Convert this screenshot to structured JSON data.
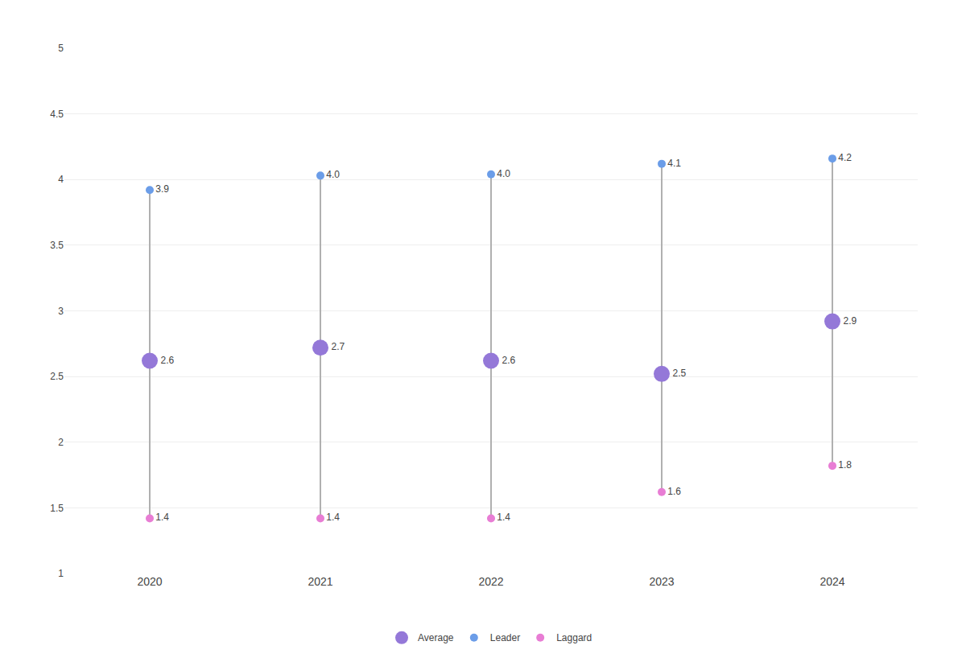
{
  "chart_data": {
    "type": "dumbbell",
    "categories": [
      "2020",
      "2021",
      "2022",
      "2023",
      "2024"
    ],
    "series": [
      {
        "name": "Average",
        "color": "#9478d8",
        "values": [
          2.62,
          2.72,
          2.62,
          2.52,
          2.92
        ],
        "value_labels": [
          "2.6",
          "2.7",
          "2.6",
          "2.5",
          "2.9"
        ],
        "marker": "large"
      },
      {
        "name": "Leader",
        "color": "#6b9de8",
        "values": [
          3.92,
          4.03,
          4.04,
          4.12,
          4.16
        ],
        "value_labels": [
          "3.9",
          "4.0",
          "4.0",
          "4.1",
          "4.2"
        ],
        "marker": "small"
      },
      {
        "name": "Laggard",
        "color": "#e87dd4",
        "values": [
          1.42,
          1.42,
          1.42,
          1.62,
          1.82
        ],
        "value_labels": [
          "1.4",
          "1.4",
          "1.4",
          "1.6",
          "1.8"
        ],
        "marker": "small"
      }
    ],
    "ylim": [
      1.0,
      5.0
    ],
    "yticks": [
      1.0,
      1.5,
      2.0,
      2.5,
      3.0,
      3.5,
      4.0,
      4.5,
      5.0
    ],
    "grid": true,
    "legend": "bottom",
    "data_labels": true
  }
}
